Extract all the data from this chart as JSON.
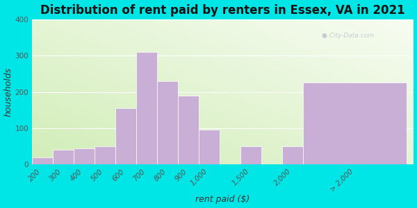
{
  "title": "Distribution of rent paid by renters in Essex, VA in 2021",
  "xlabel": "rent paid ($)",
  "ylabel": "households",
  "bar_labels": [
    "200",
    "300",
    "400",
    "500",
    "600",
    "700",
    "800",
    "900",
    "1,000",
    "1,500",
    "2,000",
    "> 2,000"
  ],
  "bar_heights": [
    20,
    40,
    45,
    50,
    155,
    310,
    230,
    190,
    95,
    50,
    50,
    225
  ],
  "bar_color": "#c9aed6",
  "bg_color": "#00e5e5",
  "ylim": [
    0,
    400
  ],
  "yticks": [
    0,
    100,
    200,
    300,
    400
  ],
  "title_fontsize": 12,
  "axis_label_fontsize": 9,
  "tick_fontsize": 7.5,
  "watermark": "City-Data.com"
}
